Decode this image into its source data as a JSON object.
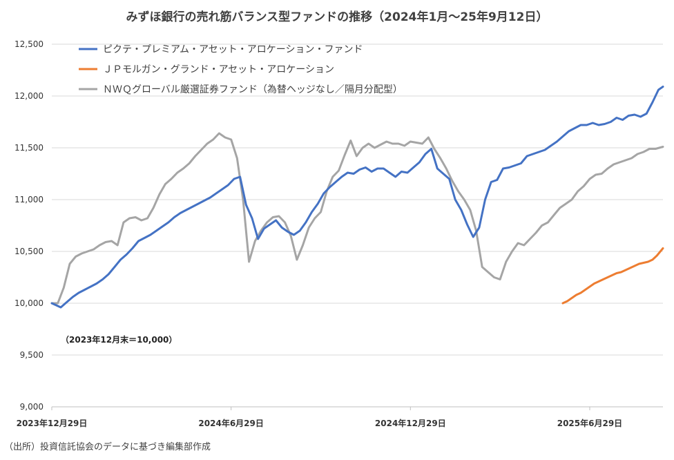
{
  "chart_data": {
    "type": "line",
    "title": "みずほ銀行の売れ筋バランス型ファンドの推移（2024年1月～25年9月12日）",
    "ylim": [
      9000,
      12500
    ],
    "yticks": [
      "9,000",
      "9,500",
      "10,000",
      "10,500",
      "11,000",
      "11,500",
      "12,000",
      "12,500"
    ],
    "ytick_values": [
      9000,
      9500,
      10000,
      10500,
      11000,
      11500,
      12000,
      12500
    ],
    "xticks": [
      "2023年12月29日",
      "2024年6月29日",
      "2024年12月29日",
      "2025年6月29日"
    ],
    "xtick_values": [
      0,
      6,
      12,
      18
    ],
    "xlim": [
      0,
      20.45
    ],
    "annotation": "（2023年12月末＝10,000）",
    "legend_position": "top-left",
    "series": [
      {
        "name": "ピクテ・プレミアム・アセット・アロケーション・ファンド",
        "color": "#4472C4",
        "x": [
          0,
          0.15,
          0.3,
          0.5,
          0.7,
          0.9,
          1.1,
          1.3,
          1.5,
          1.7,
          1.9,
          2.1,
          2.3,
          2.5,
          2.7,
          2.9,
          3.1,
          3.3,
          3.5,
          3.7,
          3.9,
          4.1,
          4.3,
          4.5,
          4.7,
          4.9,
          5.1,
          5.3,
          5.5,
          5.7,
          5.9,
          6.1,
          6.3,
          6.5,
          6.7,
          6.9,
          7.1,
          7.3,
          7.5,
          7.7,
          7.9,
          8.1,
          8.3,
          8.5,
          8.7,
          8.9,
          9.1,
          9.3,
          9.5,
          9.7,
          9.9,
          10.1,
          10.3,
          10.5,
          10.7,
          10.9,
          11.1,
          11.3,
          11.5,
          11.7,
          11.9,
          12.1,
          12.3,
          12.5,
          12.7,
          12.9,
          13.1,
          13.3,
          13.5,
          13.7,
          13.9,
          14.1,
          14.3,
          14.5,
          14.7,
          14.9,
          15.1,
          15.3,
          15.5,
          15.7,
          15.9,
          16.1,
          16.3,
          16.5,
          16.7,
          16.9,
          17.1,
          17.3,
          17.5,
          17.7,
          17.9,
          18.1,
          18.3,
          18.5,
          18.7,
          18.9,
          19.1,
          19.3,
          19.5,
          19.7,
          19.9,
          20.1,
          20.3,
          20.45
        ],
        "values": [
          10000,
          9980,
          9960,
          10010,
          10060,
          10100,
          10130,
          10160,
          10190,
          10230,
          10280,
          10350,
          10420,
          10470,
          10530,
          10600,
          10630,
          10660,
          10700,
          10740,
          10780,
          10830,
          10870,
          10900,
          10930,
          10960,
          10990,
          11020,
          11060,
          11100,
          11140,
          11200,
          11220,
          10950,
          10820,
          10620,
          10720,
          10760,
          10800,
          10730,
          10690,
          10660,
          10700,
          10780,
          10880,
          10960,
          11060,
          11120,
          11170,
          11220,
          11260,
          11250,
          11290,
          11310,
          11270,
          11300,
          11300,
          11260,
          11220,
          11270,
          11260,
          11310,
          11360,
          11440,
          11490,
          11300,
          11250,
          11200,
          11000,
          10900,
          10760,
          10640,
          10730,
          11000,
          11170,
          11190,
          11300,
          11310,
          11330,
          11350,
          11420,
          11440,
          11460,
          11480,
          11520,
          11560,
          11610,
          11660,
          11690,
          11720,
          11720,
          11740,
          11720,
          11730,
          11750,
          11790,
          11770,
          11810,
          11820,
          11800,
          11830,
          11940,
          12060,
          12090
        ]
      },
      {
        "name": "ＪＰモルガン・グランド・アセット・アロケーション",
        "color": "#ED7D31",
        "x": [
          17.1,
          17.25,
          17.4,
          17.55,
          17.7,
          17.85,
          18.0,
          18.15,
          18.3,
          18.45,
          18.6,
          18.75,
          18.9,
          19.05,
          19.2,
          19.35,
          19.5,
          19.65,
          19.8,
          19.95,
          20.1,
          20.25,
          20.45
        ],
        "values": [
          10000,
          10020,
          10050,
          10080,
          10100,
          10130,
          10160,
          10190,
          10210,
          10230,
          10250,
          10270,
          10290,
          10300,
          10320,
          10340,
          10360,
          10380,
          10390,
          10400,
          10420,
          10460,
          10530
        ]
      },
      {
        "name": "ＮＷＱグローバル厳選証券ファンド（為替ヘッジなし／隔月分配型）",
        "color": "#A5A5A5",
        "x": [
          0,
          0.2,
          0.4,
          0.6,
          0.8,
          1.0,
          1.2,
          1.4,
          1.6,
          1.8,
          2.0,
          2.2,
          2.4,
          2.6,
          2.8,
          3.0,
          3.2,
          3.4,
          3.6,
          3.8,
          4.0,
          4.2,
          4.4,
          4.6,
          4.8,
          5.0,
          5.2,
          5.4,
          5.6,
          5.8,
          6.0,
          6.2,
          6.4,
          6.6,
          6.8,
          7.0,
          7.2,
          7.4,
          7.6,
          7.8,
          8.0,
          8.2,
          8.4,
          8.6,
          8.8,
          9.0,
          9.2,
          9.4,
          9.6,
          9.8,
          10.0,
          10.2,
          10.4,
          10.6,
          10.8,
          11.0,
          11.2,
          11.4,
          11.6,
          11.8,
          12.0,
          12.2,
          12.4,
          12.6,
          12.8,
          13.0,
          13.2,
          13.4,
          13.6,
          13.8,
          14.0,
          14.2,
          14.4,
          14.6,
          14.8,
          15.0,
          15.2,
          15.4,
          15.6,
          15.8,
          16.0,
          16.2,
          16.4,
          16.6,
          16.8,
          17.0,
          17.2,
          17.4,
          17.6,
          17.8,
          18.0,
          18.2,
          18.4,
          18.6,
          18.8,
          19.0,
          19.2,
          19.4,
          19.6,
          19.8,
          20.0,
          20.2,
          20.45
        ],
        "values": [
          10000,
          10000,
          10150,
          10380,
          10450,
          10480,
          10500,
          10520,
          10560,
          10590,
          10600,
          10560,
          10780,
          10820,
          10830,
          10800,
          10820,
          10920,
          11050,
          11150,
          11200,
          11260,
          11300,
          11350,
          11420,
          11480,
          11540,
          11580,
          11640,
          11600,
          11580,
          11400,
          11000,
          10400,
          10600,
          10700,
          10780,
          10830,
          10840,
          10780,
          10650,
          10420,
          10560,
          10730,
          10820,
          10880,
          11080,
          11220,
          11280,
          11430,
          11570,
          11420,
          11500,
          11540,
          11500,
          11530,
          11560,
          11540,
          11540,
          11520,
          11560,
          11550,
          11540,
          11600,
          11490,
          11400,
          11300,
          11180,
          11080,
          11000,
          10900,
          10700,
          10350,
          10300,
          10250,
          10230,
          10400,
          10500,
          10580,
          10560,
          10620,
          10680,
          10750,
          10780,
          10850,
          10920,
          10960,
          11000,
          11080,
          11130,
          11200,
          11240,
          11250,
          11300,
          11340,
          11360,
          11380,
          11400,
          11440,
          11460,
          11490,
          11490,
          11510
        ]
      }
    ]
  },
  "source_note": "（出所）投資信託協会のデータに基づき編集部作成"
}
